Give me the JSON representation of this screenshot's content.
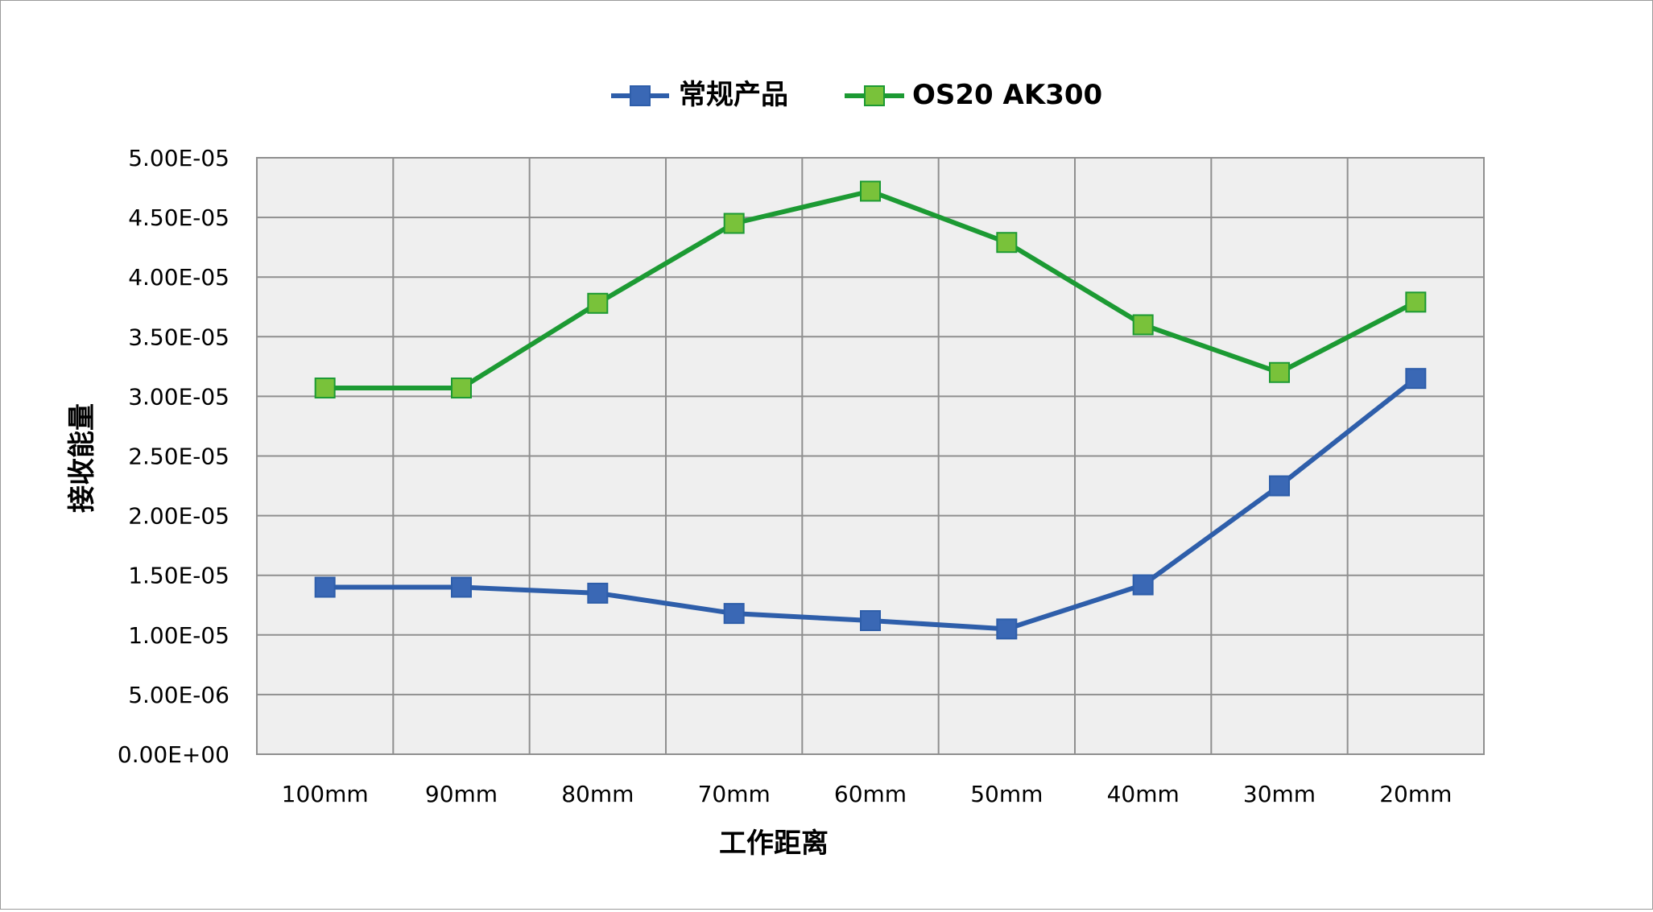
{
  "chart_data": {
    "type": "line",
    "title": "",
    "xlabel": "工作距离",
    "ylabel": "接收能量",
    "categories": [
      "100mm",
      "90mm",
      "80mm",
      "70mm",
      "60mm",
      "50mm",
      "40mm",
      "30mm",
      "20mm"
    ],
    "y_tick_labels": [
      "0.00E+00",
      "5.00E-06",
      "1.00E-05",
      "1.50E-05",
      "2.00E-05",
      "2.50E-05",
      "3.00E-05",
      "3.50E-05",
      "4.00E-05",
      "4.50E-05",
      "5.00E-05"
    ],
    "ylim": [
      0,
      5e-05
    ],
    "grid": true,
    "legend_position": "top-center",
    "plot_background": "#efefef",
    "gridline_color": "#8f8f8f",
    "series": [
      {
        "name": "常规产品",
        "color": "#2e5eaa",
        "marker_fill": "#3a68b5",
        "marker": "square",
        "values": [
          1.4e-05,
          1.4e-05,
          1.35e-05,
          1.18e-05,
          1.12e-05,
          1.05e-05,
          1.42e-05,
          2.25e-05,
          3.15e-05
        ]
      },
      {
        "name": "OS20 AK300",
        "color": "#1c9a33",
        "marker_fill": "#79c23a",
        "marker": "square",
        "values": [
          3.07e-05,
          3.07e-05,
          3.78e-05,
          4.45e-05,
          4.72e-05,
          4.29e-05,
          3.6e-05,
          3.2e-05,
          3.79e-05
        ]
      }
    ]
  }
}
